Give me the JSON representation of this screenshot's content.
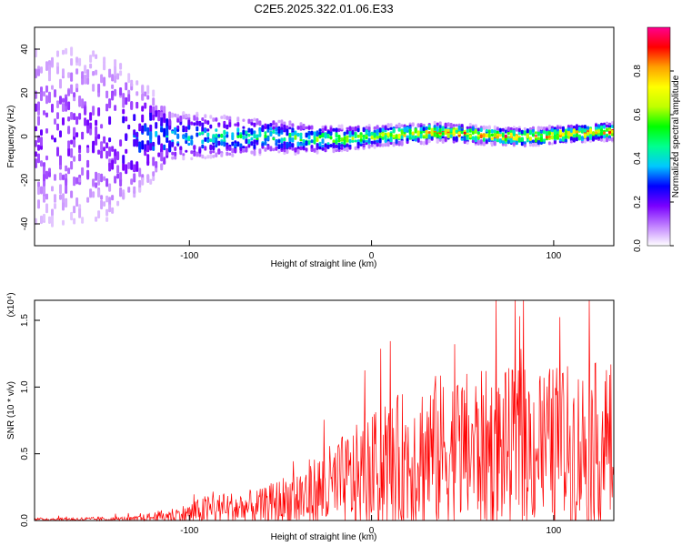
{
  "title": "C2E5.2025.322.01.06.E33",
  "chart_data": [
    {
      "type": "heatmap",
      "xlabel": "Height of straight line (km)",
      "ylabel": "Frequency (Hz)",
      "xlim": [
        -185,
        133
      ],
      "ylim": [
        -50,
        50
      ],
      "x_ticks": [
        -100,
        0,
        100
      ],
      "y_ticks": [
        -40,
        -20,
        0,
        20,
        40
      ],
      "colorbar": {
        "label": "Normalized spectral amplitude",
        "range": [
          0,
          1
        ],
        "ticks": [
          0.0,
          0.2,
          0.4,
          0.6,
          0.8
        ],
        "colors": [
          "#ffffff",
          "#c080ff",
          "#7a00ff",
          "#0000ff",
          "#00c8ff",
          "#00ff90",
          "#00ff00",
          "#c0ff00",
          "#ffff00",
          "#ffa000",
          "#ff0000",
          "#ff0090"
        ]
      },
      "description_points": [
        {
          "x": -150,
          "spread_hz": 50,
          "peak_amp": 0.2
        },
        {
          "x": -110,
          "spread_hz": 12,
          "peak_amp": 0.45
        },
        {
          "x": -50,
          "spread_hz": 8,
          "peak_amp": 0.55
        },
        {
          "x": 0,
          "spread_hz": 5,
          "peak_amp": 0.75
        },
        {
          "x": 60,
          "spread_hz": 4,
          "peak_amp": 0.95
        },
        {
          "x": 130,
          "spread_hz": 4,
          "peak_amp": 0.95
        }
      ]
    },
    {
      "type": "line",
      "xlabel": "Height of straight line (km)",
      "ylabel": "SNR (10 * v/v)",
      "y_multiplier": "(x10⁴)",
      "xlim": [
        -185,
        133
      ],
      "ylim": [
        0,
        1.65
      ],
      "x_ticks": [
        -100,
        0,
        100
      ],
      "y_ticks": [
        0.0,
        0.5,
        1.0,
        1.5
      ],
      "color": "#ff0000",
      "envelope": [
        {
          "x": -185,
          "base": 0.01,
          "noise": 0.01
        },
        {
          "x": -130,
          "base": 0.01,
          "noise": 0.02
        },
        {
          "x": -100,
          "base": 0.05,
          "noise": 0.08
        },
        {
          "x": -90,
          "base": 0.08,
          "noise": 0.12
        },
        {
          "x": -60,
          "base": 0.1,
          "noise": 0.14
        },
        {
          "x": -30,
          "base": 0.2,
          "noise": 0.3
        },
        {
          "x": 0,
          "base": 0.35,
          "noise": 0.45
        },
        {
          "x": 30,
          "base": 0.5,
          "noise": 0.6
        },
        {
          "x": 80,
          "base": 0.55,
          "noise": 0.6
        },
        {
          "x": 133,
          "base": 0.55,
          "noise": 0.65
        }
      ]
    }
  ]
}
